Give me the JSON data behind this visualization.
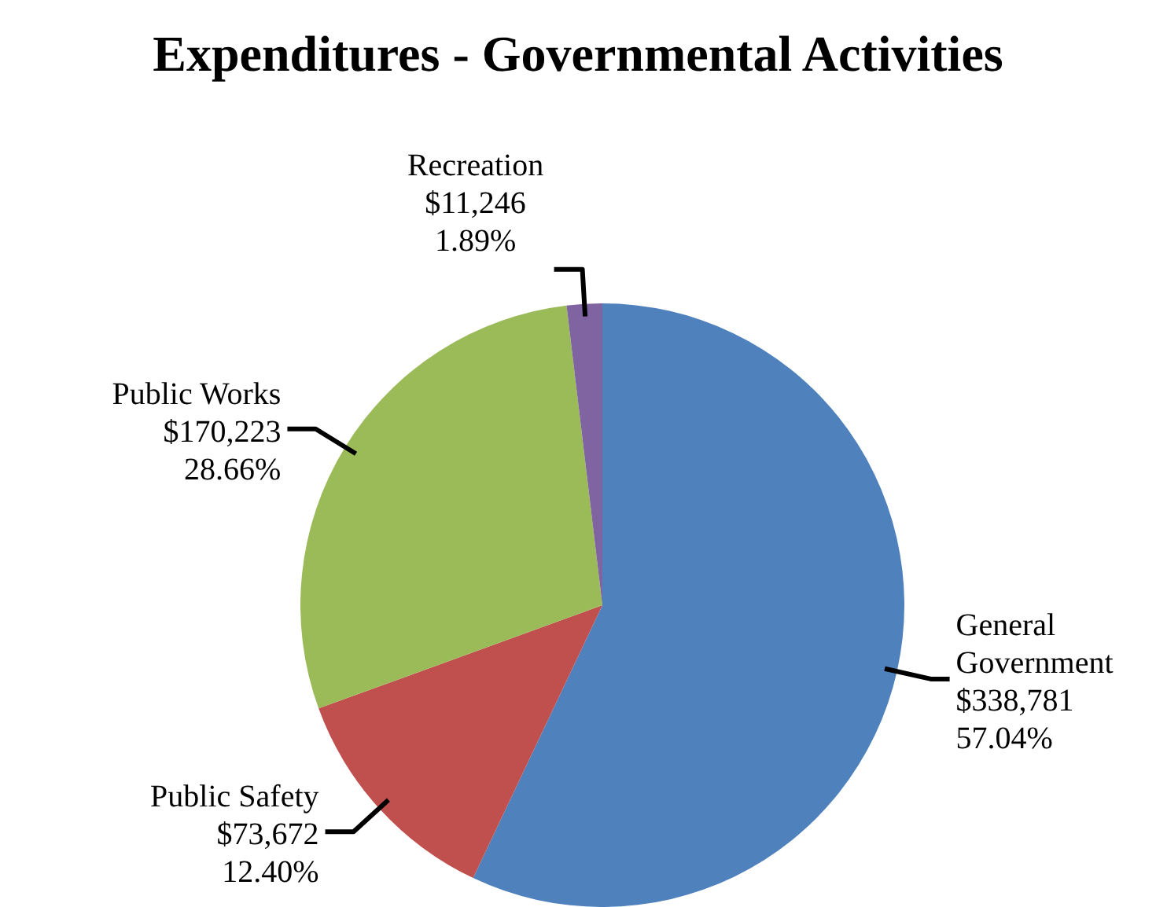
{
  "chart_data": {
    "type": "pie",
    "title": "Expenditures - Governmental Activities",
    "categories": [
      "General Government",
      "Public Safety",
      "Public Works",
      "Recreation"
    ],
    "values": [
      338781,
      73672,
      170223,
      11246
    ],
    "colors": [
      "#4f81bd",
      "#c0504d",
      "#9bbb59",
      "#8064a2"
    ],
    "value_labels": [
      "$338,781\n57.04%",
      "$73,672\n12.40%",
      "$170,223\n28.66%",
      "$11,246\n1.89%"
    ]
  }
}
